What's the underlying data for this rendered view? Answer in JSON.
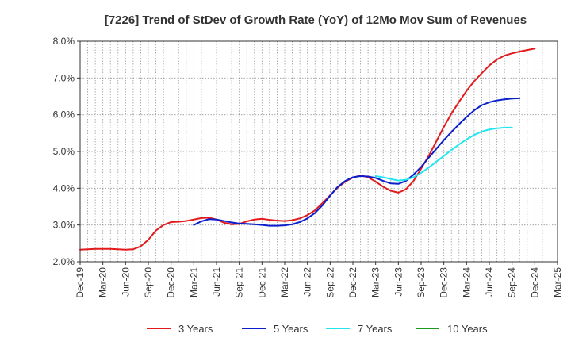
{
  "chart_data": {
    "type": "line",
    "title": "[7226]  Trend of StDev of Growth Rate (YoY) of 12Mo Mov Sum of Revenues",
    "xlabel": "",
    "ylabel": "",
    "ylim": [
      2.0,
      8.0
    ],
    "y_ticks": [
      2.0,
      3.0,
      4.0,
      5.0,
      6.0,
      7.0,
      8.0
    ],
    "y_tick_labels": [
      "2.0%",
      "3.0%",
      "4.0%",
      "5.0%",
      "6.0%",
      "7.0%",
      "8.0%"
    ],
    "x_ticks": [
      "Dec-19",
      "Mar-20",
      "Jun-20",
      "Sep-20",
      "Dec-20",
      "Mar-21",
      "Jun-21",
      "Sep-21",
      "Dec-21",
      "Mar-22",
      "Jun-22",
      "Sep-22",
      "Dec-22",
      "Mar-23",
      "Jun-23",
      "Sep-23",
      "Dec-23",
      "Mar-24",
      "Jun-24",
      "Sep-24",
      "Dec-24",
      "Mar-25"
    ],
    "x_start": "Dec-19",
    "x_months_total": 63,
    "grid": true,
    "legend_position": "bottom",
    "series": [
      {
        "name": "3 Years",
        "color": "#e31a1c",
        "start_month": 0,
        "values": [
          2.33,
          2.34,
          2.35,
          2.35,
          2.35,
          2.34,
          2.33,
          2.34,
          2.42,
          2.6,
          2.85,
          3.0,
          3.08,
          3.09,
          3.11,
          3.15,
          3.19,
          3.2,
          3.15,
          3.06,
          3.02,
          3.03,
          3.1,
          3.15,
          3.17,
          3.14,
          3.12,
          3.11,
          3.13,
          3.18,
          3.27,
          3.4,
          3.6,
          3.81,
          4.02,
          4.18,
          4.29,
          4.35,
          4.3,
          4.18,
          4.04,
          3.93,
          3.88,
          3.97,
          4.2,
          4.53,
          4.88,
          5.27,
          5.67,
          6.03,
          6.35,
          6.65,
          6.91,
          7.13,
          7.34,
          7.5,
          7.61,
          7.67,
          7.72,
          7.76,
          7.8
        ]
      },
      {
        "name": "5 Years",
        "color": "#0a1ecc",
        "start_month": 15,
        "values": [
          3.0,
          3.1,
          3.16,
          3.15,
          3.11,
          3.07,
          3.04,
          3.03,
          3.02,
          3.0,
          2.98,
          2.98,
          2.99,
          3.02,
          3.08,
          3.18,
          3.33,
          3.54,
          3.8,
          4.04,
          4.2,
          4.3,
          4.33,
          4.32,
          4.28,
          4.2,
          4.13,
          4.12,
          4.2,
          4.37,
          4.58,
          4.83,
          5.07,
          5.31,
          5.53,
          5.74,
          5.94,
          6.12,
          6.26,
          6.34,
          6.39,
          6.42,
          6.44,
          6.45
        ]
      },
      {
        "name": "7 Years",
        "color": "#22e5f0",
        "start_month": 39,
        "values": [
          4.33,
          4.3,
          4.25,
          4.21,
          4.23,
          4.3,
          4.42,
          4.56,
          4.72,
          4.88,
          5.04,
          5.19,
          5.33,
          5.45,
          5.54,
          5.6,
          5.63,
          5.65,
          5.65
        ]
      },
      {
        "name": "10 Years",
        "color": "#1a9a1a",
        "start_month": 0,
        "values": []
      }
    ]
  }
}
